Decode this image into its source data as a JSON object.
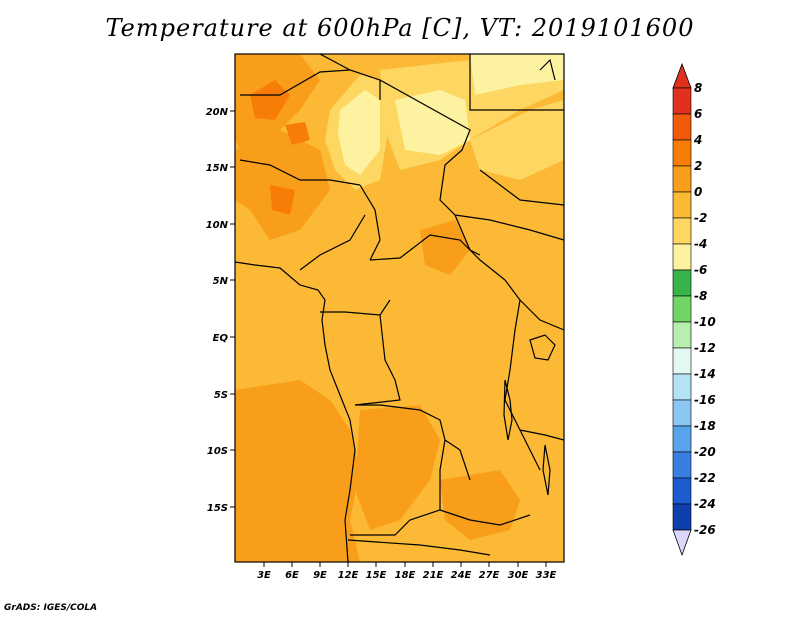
{
  "title": "Temperature at 600hPa [C], VT: 2019101600",
  "credit": "GrADS: IGES/COLA",
  "map": {
    "lat_labels": [
      "20N",
      "15N",
      "10N",
      "5N",
      "EQ",
      "5S",
      "10S",
      "15S"
    ],
    "lon_labels": [
      "3E",
      "6E",
      "9E",
      "12E",
      "15E",
      "18E",
      "21E",
      "24E",
      "27E",
      "30E",
      "33E"
    ]
  },
  "colorbar": {
    "labels": [
      "8",
      "6",
      "4",
      "2",
      "0",
      "-2",
      "-4",
      "-6",
      "-8",
      "-10",
      "-12",
      "-14",
      "-16",
      "-18",
      "-20",
      "-22",
      "-24",
      "-26"
    ],
    "colors": [
      "#e0301e",
      "#f05a0a",
      "#f87d08",
      "#f99e1b",
      "#fbb935",
      "#fdd761",
      "#fdf2a0",
      "#37b34a",
      "#71d565",
      "#b6efaf",
      "#e4f8f2",
      "#b4e3f8",
      "#8cc7f4",
      "#57a4ec",
      "#377fe0",
      "#1c5cd0",
      "#0f3fae",
      "#0a1a73"
    ],
    "under_color": "#dcd7fa"
  }
}
